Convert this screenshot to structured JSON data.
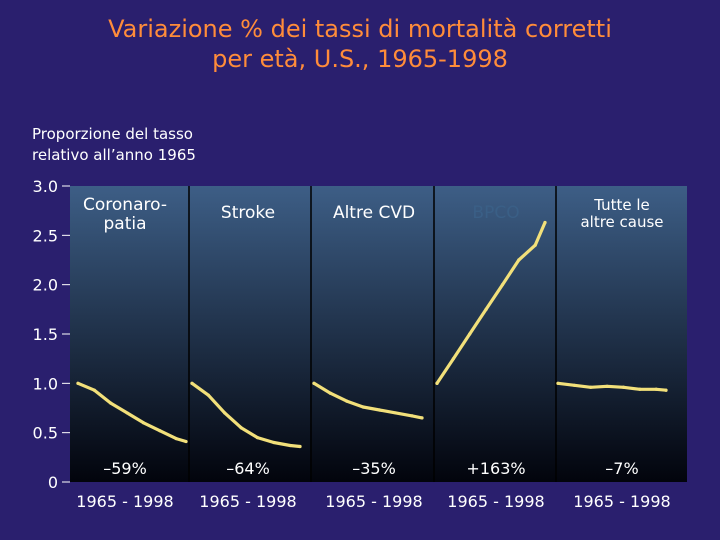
{
  "title_line1": "Variazione % dei tassi di mortalità corretti",
  "title_line2": "per età, U.S., 1965-1998",
  "ylabel_line1": "Proporzione del tasso",
  "ylabel_line2": "relativo all’anno 1965",
  "colors": {
    "background": "#2a1f6e",
    "panel_top": "#3d5e86",
    "panel_bottom": "#02040c",
    "line": "#f2e07a",
    "title": "#ff8c3a",
    "text": "#ffffff",
    "copd_label": "#3a5f86"
  },
  "chart_data": {
    "type": "line",
    "title": "Variazione % dei tassi di mortalità corretti per età, U.S., 1965-1998",
    "ylabel": "Proporzione del tasso relativo all’anno 1965",
    "ylim": [
      0,
      3.0
    ],
    "yticks": [
      "3.0",
      "2.5",
      "2.0",
      "1.5",
      "1.0",
      "0.5",
      "0"
    ],
    "ytick_values": [
      3.0,
      2.5,
      2.0,
      1.5,
      1.0,
      0.5,
      0
    ],
    "grid": false,
    "panels": [
      {
        "label": "Coronaropatia",
        "label_lines": [
          "Coronaro-",
          "patia"
        ],
        "change": "–59%",
        "xrange_label": "1965 - 1998",
        "x": [
          1965,
          1970,
          1975,
          1980,
          1985,
          1990,
          1995,
          1998
        ],
        "values": [
          1.0,
          0.93,
          0.8,
          0.7,
          0.6,
          0.52,
          0.44,
          0.41
        ]
      },
      {
        "label": "Stroke",
        "label_lines": [
          "Stroke"
        ],
        "change": "–64%",
        "xrange_label": "1965 - 1998",
        "x": [
          1965,
          1970,
          1975,
          1980,
          1985,
          1990,
          1995,
          1998
        ],
        "values": [
          1.0,
          0.88,
          0.7,
          0.55,
          0.45,
          0.4,
          0.37,
          0.36
        ]
      },
      {
        "label": "Altre CVD",
        "label_lines": [
          "Altre CVD"
        ],
        "change": "–35%",
        "xrange_label": "1965 - 1998",
        "x": [
          1965,
          1970,
          1975,
          1980,
          1985,
          1990,
          1995,
          1998
        ],
        "values": [
          1.0,
          0.9,
          0.82,
          0.76,
          0.73,
          0.7,
          0.67,
          0.65
        ]
      },
      {
        "label": "BPCO",
        "label_lines": [
          "BPCO"
        ],
        "change": "+163%",
        "xrange_label": "1965 - 1998",
        "x": [
          1965,
          1970,
          1975,
          1980,
          1985,
          1990,
          1995,
          1998
        ],
        "values": [
          1.0,
          1.25,
          1.5,
          1.75,
          2.0,
          2.25,
          2.4,
          2.63
        ]
      },
      {
        "label": "Tutte le altre cause",
        "label_lines": [
          "Tutte le",
          "altre cause"
        ],
        "change": "–7%",
        "xrange_label": "1965 - 1998",
        "x": [
          1965,
          1970,
          1975,
          1980,
          1985,
          1990,
          1995,
          1998
        ],
        "values": [
          1.0,
          0.98,
          0.96,
          0.97,
          0.96,
          0.94,
          0.94,
          0.93
        ]
      }
    ]
  }
}
